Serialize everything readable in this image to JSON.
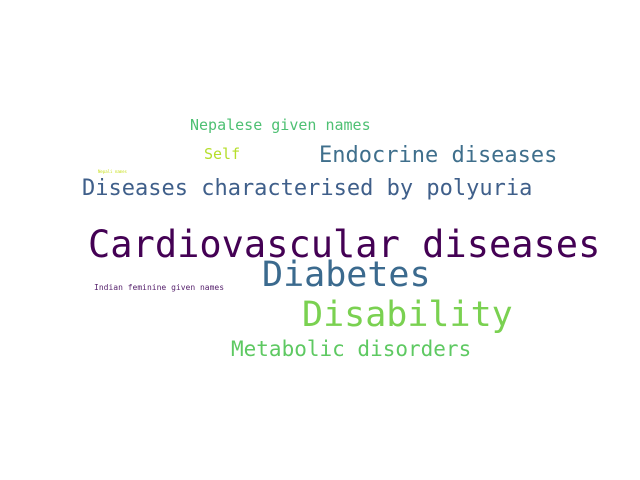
{
  "words": [
    {
      "text": "Cardiovascular diseases",
      "color": "#440154"
    },
    {
      "text": "Diabetes",
      "color": "#3b6a8e"
    },
    {
      "text": "Disability",
      "color": "#7ad151"
    },
    {
      "text": "Diseases characterised by polyuria",
      "color": "#3f5f8a"
    },
    {
      "text": "Endocrine diseases",
      "color": "#3f6f8c"
    },
    {
      "text": "Metabolic disorders",
      "color": "#5ec962"
    },
    {
      "text": "Nepalese given names",
      "color": "#4ec073"
    },
    {
      "text": "Self",
      "color": "#b5de2b"
    },
    {
      "text": "Indian feminine given names",
      "color": "#541f6b"
    },
    {
      "text": "Nepali names",
      "color": "#c8e020"
    }
  ]
}
